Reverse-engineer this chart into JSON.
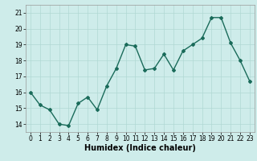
{
  "x": [
    0,
    1,
    2,
    3,
    4,
    5,
    6,
    7,
    8,
    9,
    10,
    11,
    12,
    13,
    14,
    15,
    16,
    17,
    18,
    19,
    20,
    21,
    22,
    23
  ],
  "y": [
    16.0,
    15.2,
    14.9,
    14.0,
    13.9,
    15.3,
    15.7,
    14.9,
    16.4,
    17.5,
    19.0,
    18.9,
    17.4,
    17.5,
    18.4,
    17.4,
    18.6,
    19.0,
    19.4,
    20.7,
    20.7,
    19.1,
    18.0,
    16.7
  ],
  "line_color": "#1a6b5a",
  "marker": "D",
  "marker_size": 2,
  "xlabel": "Humidex (Indice chaleur)",
  "xlim": [
    -0.5,
    23.5
  ],
  "ylim": [
    13.5,
    21.5
  ],
  "yticks": [
    14,
    15,
    16,
    17,
    18,
    19,
    20,
    21
  ],
  "xticks": [
    0,
    1,
    2,
    3,
    4,
    5,
    6,
    7,
    8,
    9,
    10,
    11,
    12,
    13,
    14,
    15,
    16,
    17,
    18,
    19,
    20,
    21,
    22,
    23
  ],
  "bg_color": "#ceecea",
  "grid_color": "#b0d8d4",
  "tick_fontsize": 5.5,
  "xlabel_fontsize": 7,
  "line_width": 1.0
}
